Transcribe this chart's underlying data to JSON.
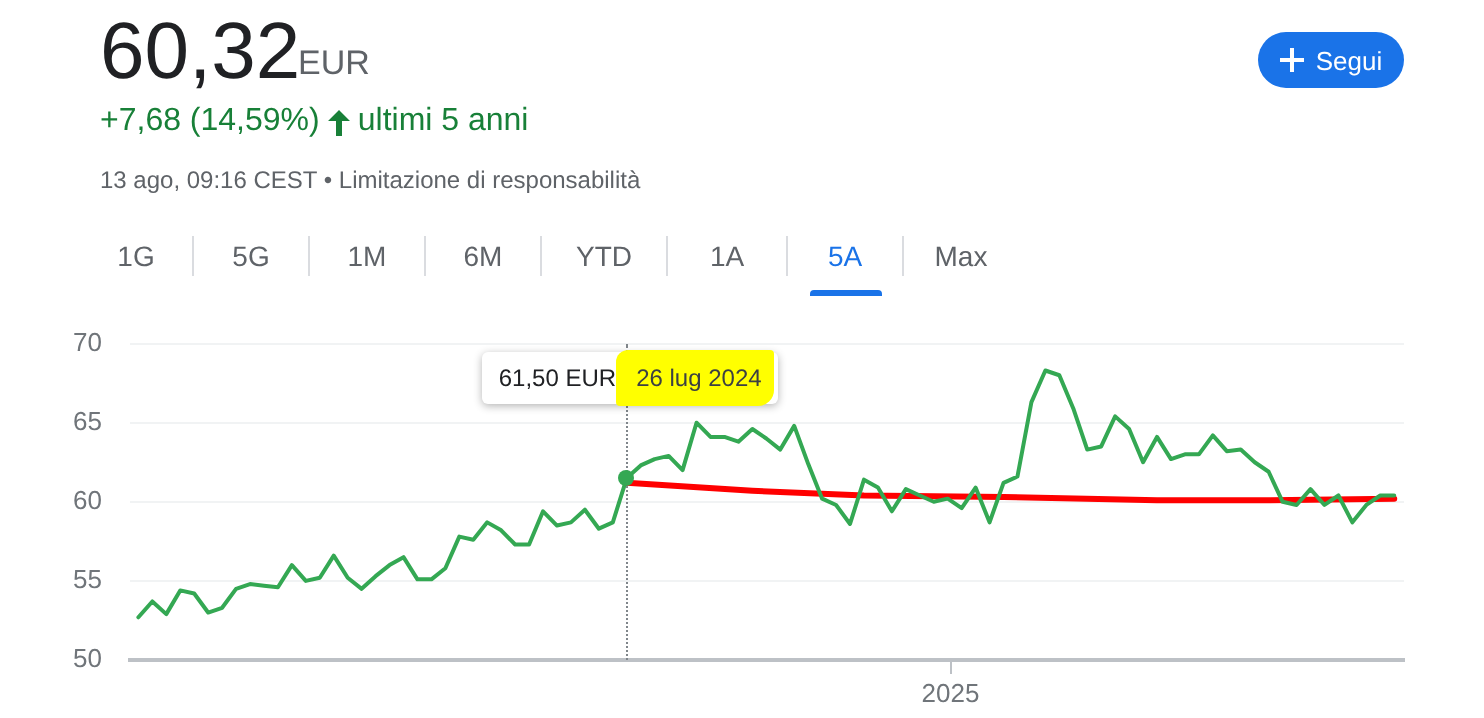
{
  "chart_data": {
    "type": "line",
    "title": "60,32",
    "subtitle": "EUR",
    "annotations": [
      "+7,68 (14,59%)",
      "ultimi 5 anni",
      "13 ago, 09:16 CEST • Limitazione di responsabilità",
      "Segui",
      "1G",
      "5G",
      "1M",
      "6M",
      "YTD",
      "1A",
      "5A",
      "Max",
      "2025",
      "61,50 EUR",
      "26 lug 2024"
    ],
    "categories": [
      null,
      null,
      null,
      null,
      null,
      null,
      null,
      null,
      null,
      null,
      null,
      null,
      null,
      null,
      null,
      null,
      null,
      null,
      null,
      null,
      null,
      null,
      null,
      null,
      null,
      null,
      null,
      null,
      null,
      null,
      null,
      null,
      null,
      null,
      null,
      null,
      null,
      null,
      null,
      null,
      null,
      null,
      null,
      null,
      null,
      null,
      null,
      null,
      null,
      null,
      null,
      null,
      null,
      null,
      null,
      null,
      null,
      null,
      null,
      null,
      null,
      null,
      null,
      null,
      null,
      null,
      null,
      null,
      null,
      null,
      null,
      null,
      null,
      null,
      null,
      null,
      null,
      null,
      null,
      null,
      null,
      null,
      null,
      null,
      null,
      null,
      null,
      null,
      null,
      null,
      null
    ],
    "series": [
      {
        "color": "#34a853",
        "values": [
          52.7,
          53.7,
          52.9,
          54.4,
          54.2,
          53.0,
          53.3,
          54.5,
          54.8,
          54.7,
          54.6,
          56.0,
          55.0,
          55.2,
          56.6,
          55.2,
          54.5,
          55.3,
          56.0,
          56.5,
          55.1,
          55.1,
          55.8,
          57.8,
          57.6,
          58.7,
          58.2,
          57.3,
          57.3,
          59.4,
          58.5,
          58.7,
          59.5,
          58.3,
          58.7,
          61.5,
          62.3,
          62.7,
          62.9,
          62.0,
          65.0,
          64.1,
          64.1,
          63.8,
          64.6,
          64.0,
          63.3,
          64.8,
          62.4,
          60.2,
          59.8,
          58.6,
          61.4,
          60.9,
          59.4,
          60.8,
          60.4,
          60.0,
          60.2,
          59.6,
          60.9,
          58.7,
          61.2,
          61.6,
          66.3,
          68.3,
          68.0,
          65.9,
          63.3,
          63.5,
          65.4,
          64.6,
          62.5,
          64.1,
          62.7,
          63.0,
          63.0,
          64.2,
          63.2,
          63.3,
          62.5,
          61.9,
          60.0,
          59.8,
          60.8,
          59.8,
          60.4,
          58.7,
          59.8,
          60.4,
          60.4
        ]
      },
      {
        "color": "#ff0000",
        "values": [
          null,
          null,
          null,
          null,
          null,
          null,
          null,
          null,
          null,
          null,
          null,
          null,
          null,
          null,
          null,
          null,
          null,
          null,
          null,
          null,
          null,
          null,
          null,
          null,
          null,
          null,
          null,
          null,
          null,
          null,
          null,
          null,
          null,
          null,
          null,
          61.2,
          null,
          null,
          null,
          null,
          null,
          null,
          null,
          null,
          60.7,
          null,
          null,
          null,
          null,
          null,
          null,
          null,
          60.4,
          null,
          null,
          null,
          null,
          null,
          null,
          null,
          null,
          null,
          60.3,
          null,
          null,
          null,
          null,
          null,
          null,
          null,
          null,
          null,
          null,
          60.1,
          null,
          null,
          null,
          null,
          null,
          null,
          null,
          60.1,
          null,
          null,
          null,
          null,
          null,
          null,
          null,
          null,
          60.2
        ]
      }
    ],
    "ylim": [
      50,
      70
    ],
    "yticks": [
      50,
      55,
      60,
      65,
      70
    ],
    "grid": "y",
    "legend": false,
    "marker": "none"
  }
}
